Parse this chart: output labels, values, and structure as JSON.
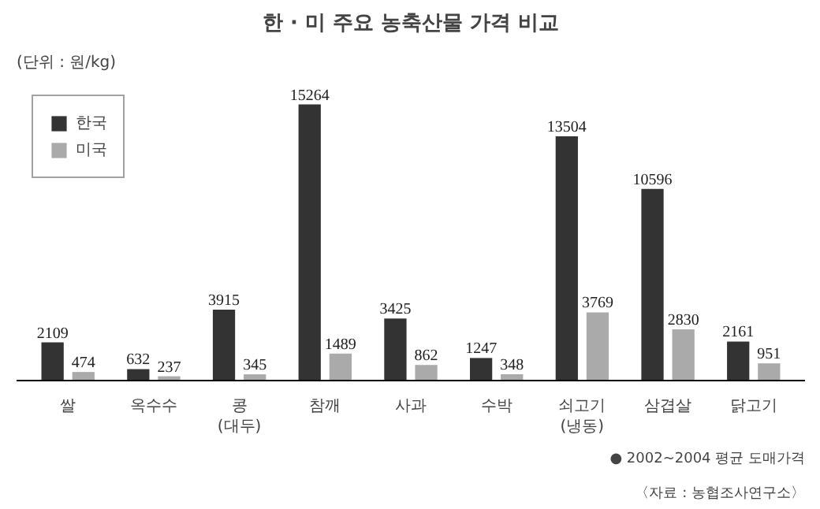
{
  "chart_data": {
    "type": "bar",
    "title": "한 · 미 주요 농축산물 가격 비교",
    "subtitle": "(단위 : 원/kg)",
    "categories": [
      "쌀",
      "옥수수",
      "콩\n(대두)",
      "참깨",
      "사과",
      "수박",
      "쇠고기\n(냉동)",
      "삼겹살",
      "닭고기"
    ],
    "series": [
      {
        "name": "한국",
        "color": "#333333",
        "values": [
          2109,
          632,
          3915,
          15264,
          3425,
          1247,
          13504,
          10596,
          2161
        ]
      },
      {
        "name": "미국",
        "color": "#aaaaaa",
        "values": [
          474,
          237,
          345,
          1489,
          862,
          348,
          3769,
          2830,
          951
        ]
      }
    ],
    "data_labels": true,
    "legend": "top left",
    "grid": false,
    "tick_labels": "x",
    "annotations": [
      "● 2002~2004 평균 도매가격",
      "〈자료 : 농협조사연구소〉"
    ]
  }
}
